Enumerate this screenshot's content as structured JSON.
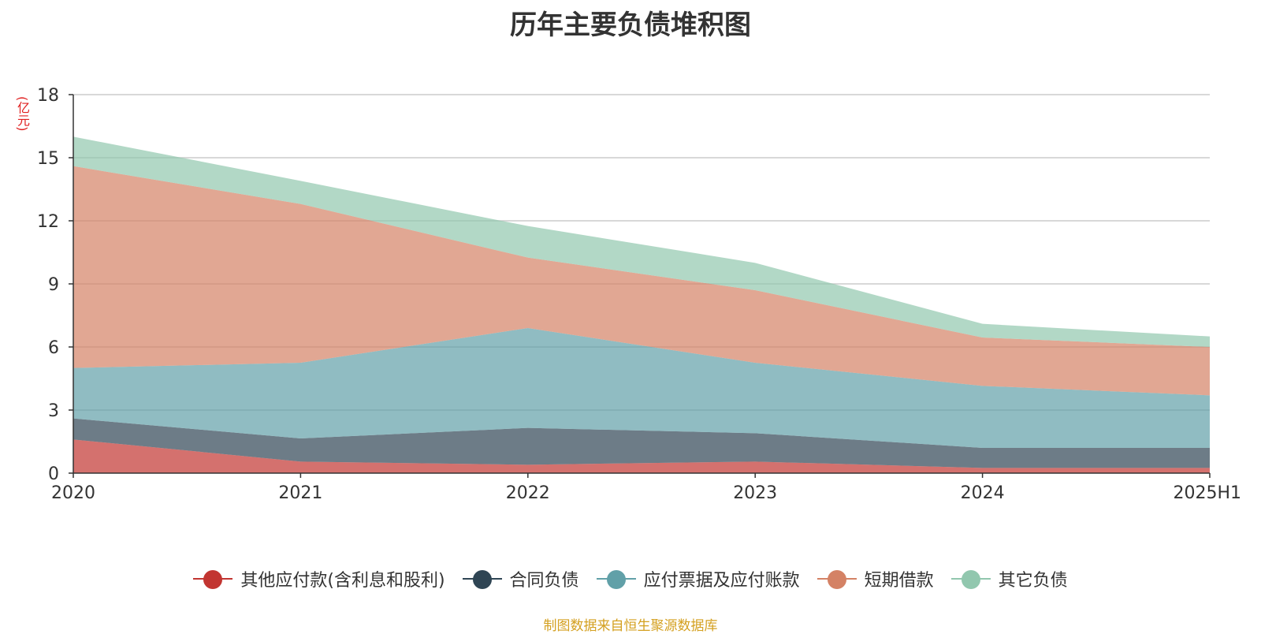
{
  "chart_data": {
    "type": "area",
    "title": "历年主要负债堆积图",
    "ylabel": "(亿元)",
    "categories": [
      "2020",
      "2021",
      "2022",
      "2023",
      "2024",
      "2025H1"
    ],
    "ylim": [
      0,
      18
    ],
    "yticks": [
      0,
      3,
      6,
      9,
      12,
      15,
      18
    ],
    "stacked": true,
    "grid": true,
    "legend_position": "bottom",
    "series": [
      {
        "name": "其他应付款(含利息和股利)",
        "color": "#c23531",
        "values": [
          1.6,
          0.55,
          0.4,
          0.55,
          0.25,
          0.25
        ]
      },
      {
        "name": "合同负债",
        "color": "#2f4554",
        "values": [
          1.0,
          1.1,
          1.75,
          1.35,
          0.95,
          0.95
        ]
      },
      {
        "name": "应付票据及应付账款",
        "color": "#61a0a8",
        "values": [
          2.4,
          3.6,
          4.75,
          3.35,
          2.95,
          2.5
        ]
      },
      {
        "name": "短期借款",
        "color": "#d48265",
        "values": [
          9.6,
          7.55,
          3.35,
          3.45,
          2.3,
          2.3
        ]
      },
      {
        "name": "其它负债",
        "color": "#91c7ae",
        "values": [
          1.4,
          1.1,
          1.5,
          1.3,
          0.65,
          0.5
        ]
      }
    ]
  },
  "footer": {
    "source": "制图数据来自恒生聚源数据库"
  }
}
